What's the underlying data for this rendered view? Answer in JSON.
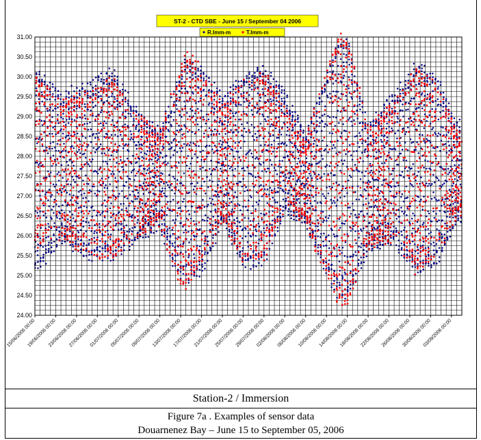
{
  "chart_data": {
    "type": "scatter",
    "title": "ST-2 - CTD SBE - June 15 / September 04 2006",
    "xlabel": "",
    "ylabel": "",
    "ylim": [
      24.0,
      31.0
    ],
    "y_ticks": [
      "24.00",
      "24.50",
      "25.00",
      "25.50",
      "26.00",
      "26.50",
      "27.00",
      "27.50",
      "28.00",
      "28.50",
      "29.00",
      "29.50",
      "30.00",
      "30.50",
      "31.00"
    ],
    "x_tick_labels": [
      "15/06/2006 00:00",
      "19/06/2006 00:00",
      "23/06/2006 00:00",
      "27/06/2006 00:00",
      "01/07/2006 00:00",
      "05/07/2006 00:00",
      "09/07/2006 00:00",
      "13/07/2006 00:00",
      "17/07/2006 00:00",
      "21/07/2006 00:00",
      "25/07/2006 00:00",
      "29/07/2006 00:00",
      "02/08/2006 00:00",
      "06/08/2006 00:00",
      "10/08/2006 00:00",
      "14/08/2006 00:00",
      "18/08/2006 00:00",
      "22/08/2006 00:00",
      "26/08/2006 00:00",
      "30/08/2006 00:00",
      "03/09/2006 00:00"
    ],
    "xlim": [
      "15/06/2006 00:00",
      "05/09/2006 00:00"
    ],
    "grid": true,
    "legend_position": "top-center",
    "series": [
      {
        "name": "R.Imm-m",
        "color": "#000080",
        "marker": "diamond",
        "envelope": {
          "x": [
            "15/06/2006",
            "20/06/2006",
            "26/06/2006",
            "30/06/2006",
            "05/07/2006",
            "09/07/2006",
            "12/07/2006",
            "14/07/2006",
            "17/07/2006",
            "21/07/2006",
            "25/07/2006",
            "29/07/2006",
            "02/08/2006",
            "06/08/2006",
            "09/08/2006",
            "12/08/2006",
            "14/08/2006",
            "18/08/2006",
            "23/08/2006",
            "27/08/2006",
            "31/08/2006",
            "04/09/2006"
          ],
          "min": [
            25.1,
            25.9,
            25.5,
            25.5,
            26.0,
            26.3,
            25.2,
            24.9,
            25.1,
            26.4,
            25.3,
            25.4,
            26.7,
            26.3,
            25.4,
            24.6,
            24.5,
            25.7,
            25.9,
            25.1,
            25.3,
            26.5
          ],
          "max": [
            30.2,
            29.5,
            29.8,
            30.1,
            29.0,
            28.6,
            29.6,
            30.4,
            30.2,
            29.4,
            30.0,
            30.2,
            29.5,
            28.5,
            29.6,
            30.7,
            30.9,
            28.7,
            29.5,
            30.2,
            30.0,
            28.8
          ]
        }
      },
      {
        "name": "T.Imm-m",
        "color": "#ff0000",
        "marker": "square",
        "envelope": {
          "x": [
            "15/06/2006",
            "20/06/2006",
            "26/06/2006",
            "30/06/2006",
            "05/07/2006",
            "09/07/2006",
            "12/07/2006",
            "14/07/2006",
            "17/07/2006",
            "21/07/2006",
            "25/07/2006",
            "29/07/2006",
            "02/08/2006",
            "06/08/2006",
            "09/08/2006",
            "12/08/2006",
            "14/08/2006",
            "18/08/2006",
            "23/08/2006",
            "27/08/2006",
            "31/08/2006",
            "04/09/2006"
          ],
          "min": [
            25.8,
            26.0,
            25.6,
            25.5,
            26.1,
            26.4,
            25.0,
            24.8,
            25.3,
            26.5,
            25.4,
            25.5,
            26.8,
            26.4,
            25.3,
            24.4,
            24.3,
            25.8,
            26.0,
            25.2,
            25.5,
            26.6
          ],
          "max": [
            30.0,
            29.3,
            29.6,
            29.9,
            28.9,
            28.5,
            29.8,
            30.6,
            30.1,
            29.2,
            29.8,
            30.0,
            29.3,
            28.3,
            29.7,
            30.9,
            31.0,
            28.6,
            29.3,
            30.1,
            29.8,
            28.6
          ]
        }
      }
    ]
  },
  "captions": {
    "station": "Station-2 /  Immersion",
    "figure": "Figure 7a . Examples of sensor data",
    "location": "Douarnenez Bay – June 15 to September 05, 2006"
  }
}
